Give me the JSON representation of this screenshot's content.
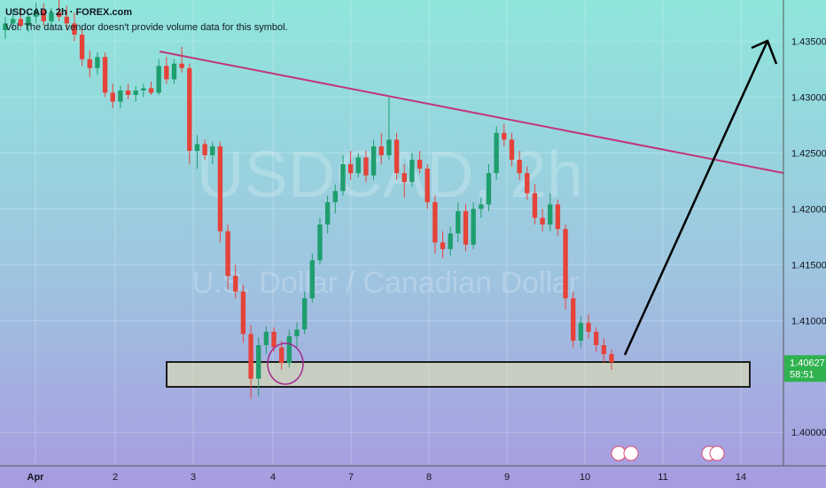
{
  "chart_data": {
    "type": "candlestick",
    "title": "USDCAD · 2h · FOREX.com",
    "subtitle": "Vol: The data vendor doesn't provide volume data for this symbol.",
    "watermark": "USDCAD, 2h",
    "watermark_sub": "U.S. Dollar / Canadian Dollar",
    "x_labels": [
      "Apr",
      "2",
      "3",
      "4",
      "7",
      "8",
      "9",
      "10",
      "11",
      "14"
    ],
    "up_color": "#1f9e6e",
    "down_color": "#e5433a",
    "ylim": [
      1.397,
      1.4387
    ],
    "yticks": [
      {
        "value": 1.4,
        "label": "1.40000"
      },
      {
        "value": 1.41,
        "label": "1.41000"
      },
      {
        "value": 1.415,
        "label": "1.41500"
      },
      {
        "value": 1.42,
        "label": "1.42000"
      },
      {
        "value": 1.425,
        "label": "1.42500"
      },
      {
        "value": 1.43,
        "label": "1.43000"
      },
      {
        "value": 1.435,
        "label": "1.43500"
      }
    ],
    "grid": true,
    "last_price": 1.40627,
    "countdown": "58:51",
    "ohlc": [
      [
        1.436,
        1.4372,
        1.4352,
        1.4366
      ],
      [
        1.4366,
        1.4378,
        1.436,
        1.437
      ],
      [
        1.437,
        1.438,
        1.4362,
        1.4364
      ],
      [
        1.4364,
        1.4376,
        1.4358,
        1.4372
      ],
      [
        1.4372,
        1.4385,
        1.4366,
        1.4378
      ],
      [
        1.4378,
        1.4384,
        1.4364,
        1.4368
      ],
      [
        1.4368,
        1.438,
        1.4362,
        1.4376
      ],
      [
        1.4376,
        1.4388,
        1.4368,
        1.4372
      ],
      [
        1.4372,
        1.4382,
        1.436,
        1.4366
      ],
      [
        1.4366,
        1.4376,
        1.435,
        1.4356
      ],
      [
        1.4356,
        1.4362,
        1.4328,
        1.4334
      ],
      [
        1.4334,
        1.4342,
        1.4318,
        1.4326
      ],
      [
        1.4326,
        1.434,
        1.432,
        1.4336
      ],
      [
        1.4336,
        1.434,
        1.43,
        1.4304
      ],
      [
        1.4304,
        1.4312,
        1.429,
        1.4296
      ],
      [
        1.4296,
        1.431,
        1.429,
        1.4306
      ],
      [
        1.4306,
        1.4312,
        1.4298,
        1.4302
      ],
      [
        1.4302,
        1.431,
        1.4296,
        1.4306
      ],
      [
        1.4306,
        1.4312,
        1.43,
        1.4308
      ],
      [
        1.4308,
        1.4314,
        1.4302,
        1.4304
      ],
      [
        1.4304,
        1.4334,
        1.4302,
        1.4328
      ],
      [
        1.4328,
        1.4336,
        1.4312,
        1.4316
      ],
      [
        1.4316,
        1.4334,
        1.4312,
        1.433
      ],
      [
        1.433,
        1.4345,
        1.4322,
        1.4326
      ],
      [
        1.4326,
        1.433,
        1.424,
        1.4252
      ],
      [
        1.4252,
        1.4266,
        1.4236,
        1.4258
      ],
      [
        1.4258,
        1.4262,
        1.4244,
        1.4248
      ],
      [
        1.4248,
        1.426,
        1.424,
        1.4256
      ],
      [
        1.4256,
        1.426,
        1.417,
        1.418
      ],
      [
        1.418,
        1.4186,
        1.4128,
        1.414
      ],
      [
        1.414,
        1.415,
        1.412,
        1.4126
      ],
      [
        1.4126,
        1.4132,
        1.408,
        1.4088
      ],
      [
        1.4088,
        1.4096,
        1.403,
        1.4048
      ],
      [
        1.4048,
        1.4085,
        1.4032,
        1.4078
      ],
      [
        1.4078,
        1.4095,
        1.407,
        1.409
      ],
      [
        1.409,
        1.4094,
        1.4072,
        1.4076
      ],
      [
        1.4076,
        1.4082,
        1.4056,
        1.4062
      ],
      [
        1.4062,
        1.4092,
        1.4058,
        1.4086
      ],
      [
        1.4086,
        1.4098,
        1.4076,
        1.4092
      ],
      [
        1.4092,
        1.4126,
        1.4088,
        1.412
      ],
      [
        1.412,
        1.416,
        1.4116,
        1.4154
      ],
      [
        1.4154,
        1.4192,
        1.415,
        1.4186
      ],
      [
        1.4186,
        1.4212,
        1.4178,
        1.4206
      ],
      [
        1.4206,
        1.4222,
        1.4196,
        1.4216
      ],
      [
        1.4216,
        1.4248,
        1.4212,
        1.424
      ],
      [
        1.424,
        1.4252,
        1.4226,
        1.4232
      ],
      [
        1.4232,
        1.425,
        1.4228,
        1.4246
      ],
      [
        1.4246,
        1.4252,
        1.4224,
        1.423
      ],
      [
        1.423,
        1.4262,
        1.4226,
        1.4256
      ],
      [
        1.4256,
        1.4268,
        1.424,
        1.4248
      ],
      [
        1.4248,
        1.43,
        1.4244,
        1.4262
      ],
      [
        1.4262,
        1.4268,
        1.4226,
        1.4232
      ],
      [
        1.4232,
        1.424,
        1.421,
        1.4224
      ],
      [
        1.4224,
        1.425,
        1.422,
        1.4244
      ],
      [
        1.4244,
        1.4252,
        1.4232,
        1.4236
      ],
      [
        1.4236,
        1.424,
        1.42,
        1.4206
      ],
      [
        1.4206,
        1.4212,
        1.416,
        1.417
      ],
      [
        1.417,
        1.418,
        1.4156,
        1.4164
      ],
      [
        1.4164,
        1.4184,
        1.4158,
        1.4178
      ],
      [
        1.4178,
        1.4206,
        1.417,
        1.4198
      ],
      [
        1.4198,
        1.4204,
        1.4162,
        1.4168
      ],
      [
        1.4168,
        1.4206,
        1.4164,
        1.42
      ],
      [
        1.42,
        1.421,
        1.4192,
        1.4204
      ],
      [
        1.4204,
        1.424,
        1.4198,
        1.4232
      ],
      [
        1.4232,
        1.4274,
        1.4226,
        1.4268
      ],
      [
        1.4268,
        1.4276,
        1.4256,
        1.4262
      ],
      [
        1.4262,
        1.4268,
        1.4238,
        1.4244
      ],
      [
        1.4244,
        1.4252,
        1.4226,
        1.4232
      ],
      [
        1.4232,
        1.4238,
        1.4208,
        1.4214
      ],
      [
        1.4214,
        1.4222,
        1.4186,
        1.4192
      ],
      [
        1.4192,
        1.42,
        1.418,
        1.4186
      ],
      [
        1.4186,
        1.4214,
        1.418,
        1.4204
      ],
      [
        1.4204,
        1.4208,
        1.4176,
        1.4182
      ],
      [
        1.4182,
        1.4186,
        1.411,
        1.412
      ],
      [
        1.412,
        1.4126,
        1.4076,
        1.4082
      ],
      [
        1.4082,
        1.4104,
        1.4076,
        1.4098
      ],
      [
        1.4098,
        1.4106,
        1.4084,
        1.409
      ],
      [
        1.409,
        1.4094,
        1.4072,
        1.4078
      ],
      [
        1.4078,
        1.4084,
        1.4062,
        1.407
      ],
      [
        1.407,
        1.4074,
        1.4056,
        1.40627
      ]
    ]
  }
}
